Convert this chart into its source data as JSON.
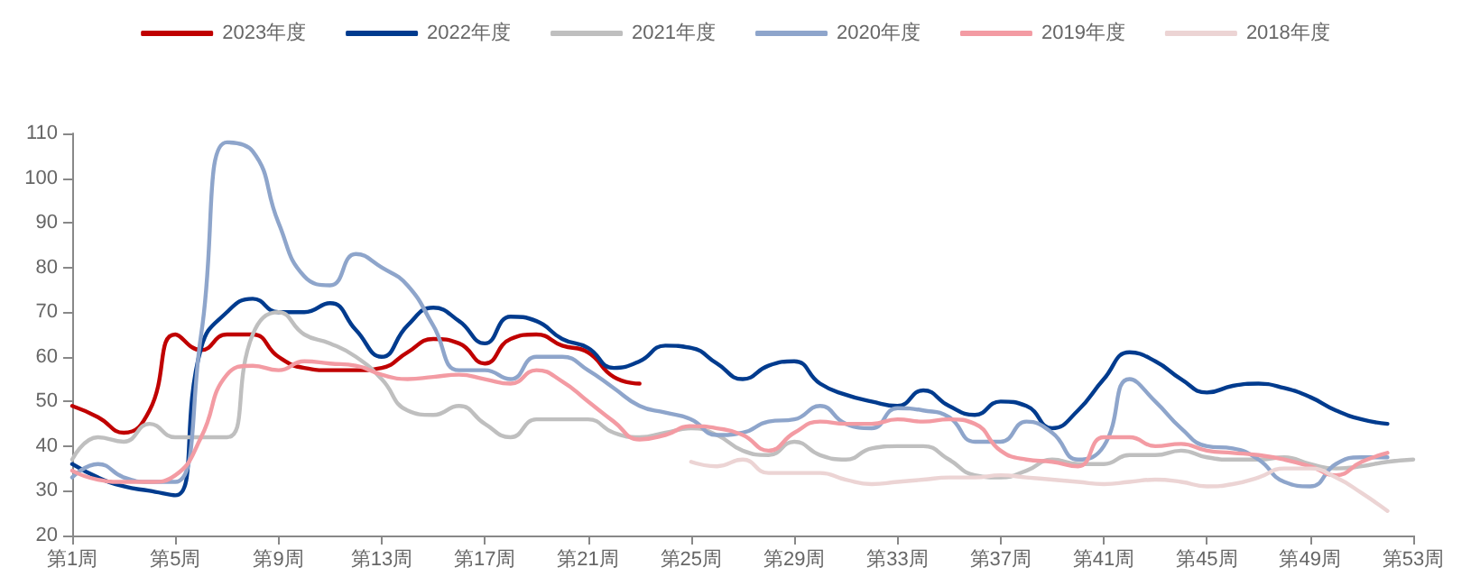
{
  "chart_data": {
    "type": "line",
    "categories": [
      "第1周",
      null,
      null,
      null,
      "第5周",
      null,
      null,
      null,
      "第9周",
      null,
      null,
      null,
      "第13周",
      null,
      null,
      null,
      "第17周",
      null,
      null,
      null,
      "第21周",
      null,
      null,
      null,
      "第25周",
      null,
      null,
      null,
      "第29周",
      null,
      null,
      null,
      "第33周",
      null,
      null,
      null,
      "第37周",
      null,
      null,
      null,
      "第41周",
      null,
      null,
      null,
      "第45周",
      null,
      null,
      null,
      "第49周",
      null,
      null,
      null,
      "第53周"
    ],
    "series": [
      {
        "name": "2023年度",
        "color": "#c00000",
        "values": [
          49,
          46.5,
          43,
          48,
          65,
          61.5,
          65,
          65,
          60,
          57.5,
          57,
          57,
          57.5,
          61,
          64,
          63,
          58.5,
          64,
          65,
          62.5,
          61,
          55.5,
          54,
          null,
          null,
          null,
          null,
          null,
          null,
          null,
          null,
          null,
          null,
          null,
          null,
          null,
          null,
          null,
          null,
          null,
          null,
          null,
          null,
          null,
          null,
          null,
          null,
          null,
          null,
          null,
          null,
          null,
          null
        ]
      },
      {
        "name": "2022年度",
        "color": "#003b8e",
        "values": [
          36,
          33,
          31,
          30,
          29,
          62,
          70,
          73,
          70,
          70,
          72,
          66,
          60,
          67,
          71,
          68,
          63,
          69,
          68,
          64,
          62,
          57.5,
          59,
          62.5,
          62,
          58.5,
          55,
          58,
          59,
          54,
          51.5,
          50,
          49,
          52.5,
          49,
          47,
          50,
          49,
          44,
          48,
          55,
          61,
          59,
          55,
          52,
          53.5,
          54,
          53,
          51,
          48,
          46,
          45,
          null
        ]
      },
      {
        "name": "2021年度",
        "color": "#bfbfbf",
        "values": [
          37,
          42,
          41,
          45,
          42,
          42,
          42,
          65,
          70,
          65,
          63,
          60,
          55,
          48,
          47,
          49,
          45,
          42,
          46,
          46,
          46,
          43,
          42,
          43,
          44,
          42.5,
          39,
          38,
          41,
          38,
          37,
          39.5,
          40,
          40,
          37,
          33.5,
          33,
          34.5,
          37,
          36,
          36,
          38,
          38,
          39,
          37.5,
          37,
          37,
          37.5,
          36,
          35,
          35.5,
          36.5,
          37
        ]
      },
      {
        "name": "2020年度",
        "color": "#8ea5cb",
        "values": [
          33,
          36,
          33,
          32,
          32,
          65,
          108,
          106,
          90,
          78,
          76,
          83,
          80,
          76,
          67,
          57,
          57,
          55,
          60,
          60,
          57,
          53,
          49,
          47.5,
          46,
          42.5,
          43,
          45.5,
          46,
          49,
          45,
          44,
          48.5,
          48,
          46.5,
          41,
          41,
          45.5,
          43,
          37,
          40,
          55,
          50,
          44,
          40,
          39.5,
          37,
          32,
          31,
          36,
          37.5,
          37.5,
          null
        ]
      },
      {
        "name": "2019年度",
        "color": "#f39ba3",
        "values": [
          34.5,
          32.5,
          32,
          32,
          33.5,
          42,
          56,
          58,
          57,
          59,
          58.5,
          58,
          56,
          55,
          55.5,
          56,
          55,
          54,
          57,
          54.5,
          50,
          45.5,
          41.5,
          42.5,
          44.5,
          44,
          42.5,
          39,
          43,
          45.5,
          45,
          45,
          46,
          45.5,
          46,
          45,
          39,
          37,
          36.5,
          35.5,
          42,
          42,
          40,
          40.5,
          39,
          38.5,
          38,
          37,
          35.5,
          33.5,
          36.5,
          38.5,
          null
        ]
      },
      {
        "name": "2018年度",
        "color": "#ecd4d4",
        "values": [
          null,
          null,
          null,
          null,
          null,
          null,
          null,
          null,
          null,
          null,
          null,
          null,
          null,
          null,
          null,
          null,
          null,
          null,
          null,
          null,
          null,
          null,
          null,
          null,
          36.5,
          35.5,
          37,
          34,
          34,
          34,
          32.5,
          31.5,
          32,
          32.5,
          33,
          33,
          33.5,
          33,
          32.5,
          32,
          31.5,
          32,
          32.5,
          32,
          31,
          31.5,
          33,
          35,
          35,
          33,
          29.5,
          25.5,
          null
        ]
      }
    ],
    "ylim": [
      20,
      110
    ],
    "yticks": [
      20,
      30,
      40,
      50,
      60,
      70,
      80,
      90,
      100,
      110
    ],
    "legend": "top",
    "grid": false,
    "marker": "none"
  }
}
